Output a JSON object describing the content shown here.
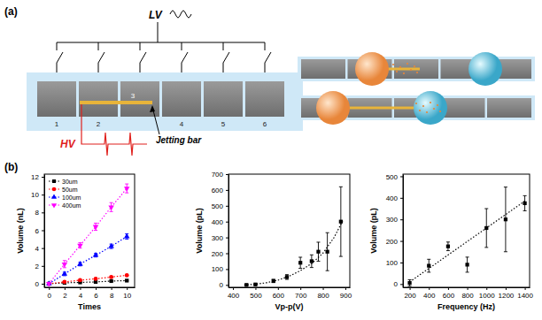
{
  "figure": {
    "panel_labels": [
      "(a)",
      "(b)"
    ]
  },
  "diagram": {
    "lv_label": "LV",
    "hv_label": "HV",
    "electrode_labels": [
      "1",
      "2",
      "3",
      "4",
      "5",
      "6"
    ],
    "jetting_bar_label": "Jetting bar"
  },
  "chart_data": [
    {
      "type": "line",
      "x_label": "Times",
      "y_label": "Volume (nL)",
      "xlim": [
        -0.6,
        11
      ],
      "xticks": [
        0,
        2,
        4,
        6,
        8,
        10
      ],
      "ylim": [
        -0.4,
        12.3
      ],
      "yticks": [
        0,
        2,
        4,
        6,
        8,
        10,
        12
      ],
      "legend": "upper left",
      "series": [
        {
          "name": "30um",
          "color": "#000000",
          "marker": "square",
          "line_style": "dotted",
          "x": [
            0,
            2,
            4,
            6,
            8,
            10
          ],
          "values": [
            0,
            0.1,
            0.15,
            0.2,
            0.3,
            0.35
          ],
          "errors": [
            0.02,
            0.03,
            0.03,
            0.04,
            0.05,
            0.05
          ]
        },
        {
          "name": "50um",
          "color": "#ff0000",
          "marker": "circle",
          "line_style": "dotted",
          "x": [
            0,
            2,
            4,
            6,
            8,
            10
          ],
          "values": [
            0,
            0.2,
            0.4,
            0.55,
            0.75,
            0.95
          ],
          "errors": [
            0.02,
            0.05,
            0.05,
            0.05,
            0.05,
            0.05
          ]
        },
        {
          "name": "100um",
          "color": "#0000ff",
          "marker": "triangle",
          "line_style": "dotted",
          "x": [
            0,
            2,
            4,
            6,
            8,
            10
          ],
          "values": [
            0,
            1.1,
            2.2,
            3.2,
            4.2,
            5.3
          ],
          "errors": [
            0.05,
            0.2,
            0.2,
            0.2,
            0.25,
            0.3
          ]
        },
        {
          "name": "400um",
          "color": "#ff00ff",
          "marker": "triangle-down",
          "line_style": "dotted",
          "x": [
            0,
            2,
            4,
            6,
            8,
            10
          ],
          "values": [
            0,
            2.2,
            4.3,
            6.4,
            8.6,
            10.7
          ],
          "errors": [
            0.1,
            0.4,
            0.3,
            0.4,
            0.5,
            0.5
          ]
        }
      ]
    },
    {
      "type": "scatter",
      "x_label": "Vp-p(V)",
      "y_label": "Volume (pL)",
      "xlim": [
        380,
        920
      ],
      "xticks": [
        400,
        500,
        600,
        700,
        800,
        900
      ],
      "ylim": [
        -15,
        700
      ],
      "yticks": [
        0,
        100,
        200,
        300,
        400,
        500,
        600,
        700
      ],
      "series": [
        {
          "type": "scatter",
          "color": "#000000",
          "marker": "square",
          "x": [
            460,
            500,
            580,
            640,
            700,
            750,
            780,
            820,
            880
          ],
          "values": [
            0,
            3,
            25,
            50,
            140,
            150,
            210,
            210,
            400
          ],
          "errors": [
            5,
            5,
            10,
            15,
            35,
            40,
            60,
            120,
            220
          ]
        },
        {
          "type": "line",
          "color": "#000000",
          "line_style": "dotted",
          "x": [
            450,
            500,
            550,
            600,
            650,
            700,
            750,
            800,
            850,
            890
          ],
          "values": [
            0,
            4,
            14,
            30,
            55,
            90,
            135,
            200,
            300,
            410
          ]
        }
      ]
    },
    {
      "type": "scatter",
      "x_label": "Frequency (Hz)",
      "y_label": "Volume (pL)",
      "xlim": [
        130,
        1450
      ],
      "xticks": [
        200,
        400,
        600,
        800,
        1000,
        1200,
        1400
      ],
      "ylim": [
        -15,
        510
      ],
      "yticks": [
        0,
        100,
        200,
        300,
        400,
        500
      ],
      "series": [
        {
          "type": "scatter",
          "color": "#000000",
          "marker": "square",
          "x": [
            200,
            400,
            600,
            800,
            1000,
            1200,
            1400
          ],
          "values": [
            5,
            85,
            175,
            90,
            260,
            300,
            375
          ],
          "errors": [
            15,
            30,
            20,
            35,
            90,
            150,
            35
          ]
        },
        {
          "type": "line",
          "color": "#000000",
          "line_style": "dotted",
          "x": [
            200,
            1400
          ],
          "values": [
            10,
            385
          ]
        }
      ]
    }
  ]
}
